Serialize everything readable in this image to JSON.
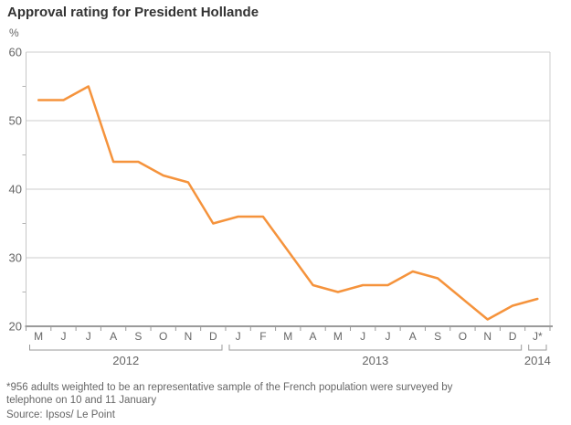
{
  "header": {
    "title": "Approval rating for President Hollande"
  },
  "chart_data": {
    "type": "line",
    "title": "Approval rating for President Hollande",
    "y_unit": "%",
    "ylim": [
      20,
      60
    ],
    "yticks": [
      20,
      30,
      40,
      50,
      60
    ],
    "y_minor_ticks": [
      25,
      35,
      45,
      55
    ],
    "grid": "horizontal-only",
    "legend": "none",
    "x_labels": [
      "M",
      "J",
      "J",
      "A",
      "S",
      "O",
      "N",
      "D",
      "J",
      "F",
      "M",
      "A",
      "M",
      "J",
      "J",
      "A",
      "S",
      "O",
      "N",
      "D",
      "J*"
    ],
    "year_groups": [
      {
        "label": "2012",
        "start": 0,
        "end": 7
      },
      {
        "label": "2013",
        "start": 8,
        "end": 19
      },
      {
        "label": "2014",
        "start": 20,
        "end": 20
      }
    ],
    "series": [
      {
        "name": "Approval rating (%)",
        "color": "#f5933c",
        "values": [
          53,
          53,
          55,
          44,
          44,
          42,
          41,
          35,
          36,
          36,
          31,
          26,
          25,
          26,
          26,
          28,
          27,
          24,
          21,
          23,
          24
        ]
      }
    ],
    "colors": {
      "line": "#f5933c",
      "gridline": "#cccccc",
      "axis": "#9b9b9b",
      "axis_text": "#666666",
      "title_text": "#333333"
    }
  },
  "footer": {
    "footnote": "*956 adults weighted to be an representative sample of the French population were surveyed by\ntelephone on 10 and 11 January",
    "source": "Source: Ipsos/ Le Point"
  }
}
